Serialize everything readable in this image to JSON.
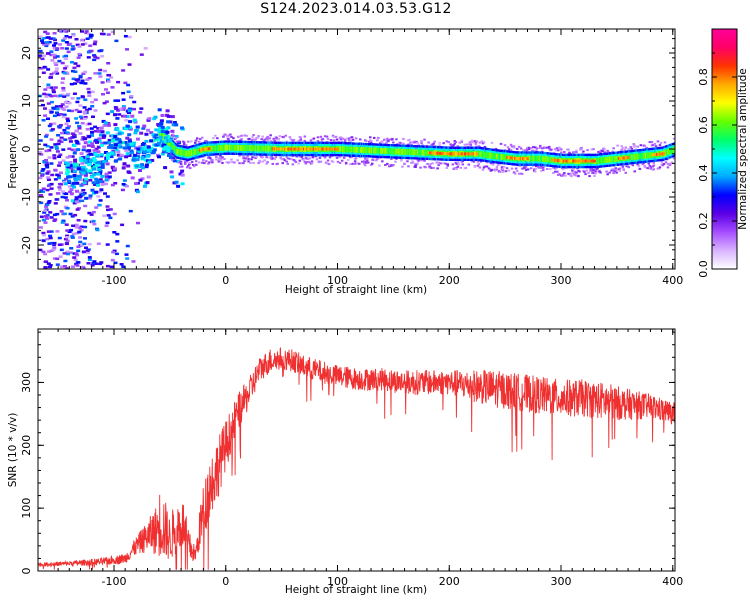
{
  "title": "S124.2023.014.03.53.G12",
  "chart_data": [
    {
      "type": "heatmap",
      "title": "S124.2023.014.03.53.G12",
      "xlabel": "Height of straight line (km)",
      "ylabel": "Frequency (Hz)",
      "xlim": [
        -168,
        402
      ],
      "ylim": [
        -25,
        25
      ],
      "xticks": [
        -100,
        0,
        100,
        200,
        300,
        400
      ],
      "yticks": [
        -20,
        -10,
        0,
        10,
        20
      ],
      "grid": false,
      "colorbar": {
        "label": "Normalized spectral amplitude",
        "range": [
          0,
          1
        ],
        "ticks": [
          0.0,
          0.2,
          0.4,
          0.6,
          0.8
        ],
        "colormap": [
          "#ffffff",
          "#d9b3ff",
          "#a64dff",
          "#5a00e6",
          "#0000ff",
          "#00aaff",
          "#00ffff",
          "#00ff66",
          "#66ff00",
          "#ffff00",
          "#ffaa00",
          "#ff3300",
          "#ff0066",
          "#ff0099"
        ]
      },
      "ridge": {
        "description_free_points_x": [
          -140,
          -120,
          -100,
          -90,
          -80,
          -70,
          -62,
          -55,
          -45,
          -35,
          -20,
          0,
          50,
          100,
          150,
          200,
          225,
          240,
          260,
          280,
          300,
          330,
          350,
          370,
          390,
          402
        ],
        "description_free_points_y": [
          -5,
          -3,
          2,
          3,
          -2,
          0,
          4,
          2,
          -0.5,
          -1,
          0,
          0.3,
          0,
          0,
          -0.5,
          -1,
          -1,
          -1.5,
          -2,
          -2,
          -2.5,
          -2.5,
          -2,
          -1.5,
          -1,
          0
        ]
      }
    },
    {
      "type": "line",
      "xlabel": "Height of straight line (km)",
      "ylabel": "SNR (10 * v/v)",
      "xlim": [
        -168,
        402
      ],
      "ylim": [
        0,
        385
      ],
      "xticks": [
        -100,
        0,
        100,
        200,
        300,
        400
      ],
      "yticks": [
        0,
        100,
        200,
        300
      ],
      "grid": false,
      "series": [
        {
          "color": "#f03030",
          "x": [
            -168,
            -140,
            -110,
            -90,
            -80,
            -70,
            -62,
            -58,
            -50,
            -45,
            -38,
            -33,
            -27,
            -22,
            -15,
            -8,
            0,
            10,
            20,
            30,
            40,
            50,
            60,
            70,
            80,
            90,
            100,
            120,
            140,
            160,
            180,
            200,
            220,
            240,
            260,
            280,
            300,
            320,
            340,
            360,
            380,
            402
          ],
          "y": [
            10,
            12,
            15,
            20,
            40,
            55,
            65,
            80,
            50,
            70,
            75,
            40,
            25,
            80,
            130,
            160,
            200,
            250,
            280,
            320,
            335,
            338,
            335,
            325,
            320,
            315,
            310,
            305,
            305,
            300,
            300,
            300,
            295,
            290,
            285,
            280,
            275,
            275,
            270,
            265,
            262,
            250
          ],
          "noise": [
            3,
            4,
            6,
            8,
            15,
            25,
            40,
            60,
            35,
            45,
            40,
            25,
            12,
            40,
            50,
            50,
            40,
            30,
            25,
            20,
            20,
            18,
            18,
            18,
            18,
            18,
            18,
            18,
            18,
            20,
            20,
            20,
            25,
            30,
            30,
            30,
            30,
            30,
            30,
            25,
            20,
            18
          ]
        }
      ]
    }
  ]
}
